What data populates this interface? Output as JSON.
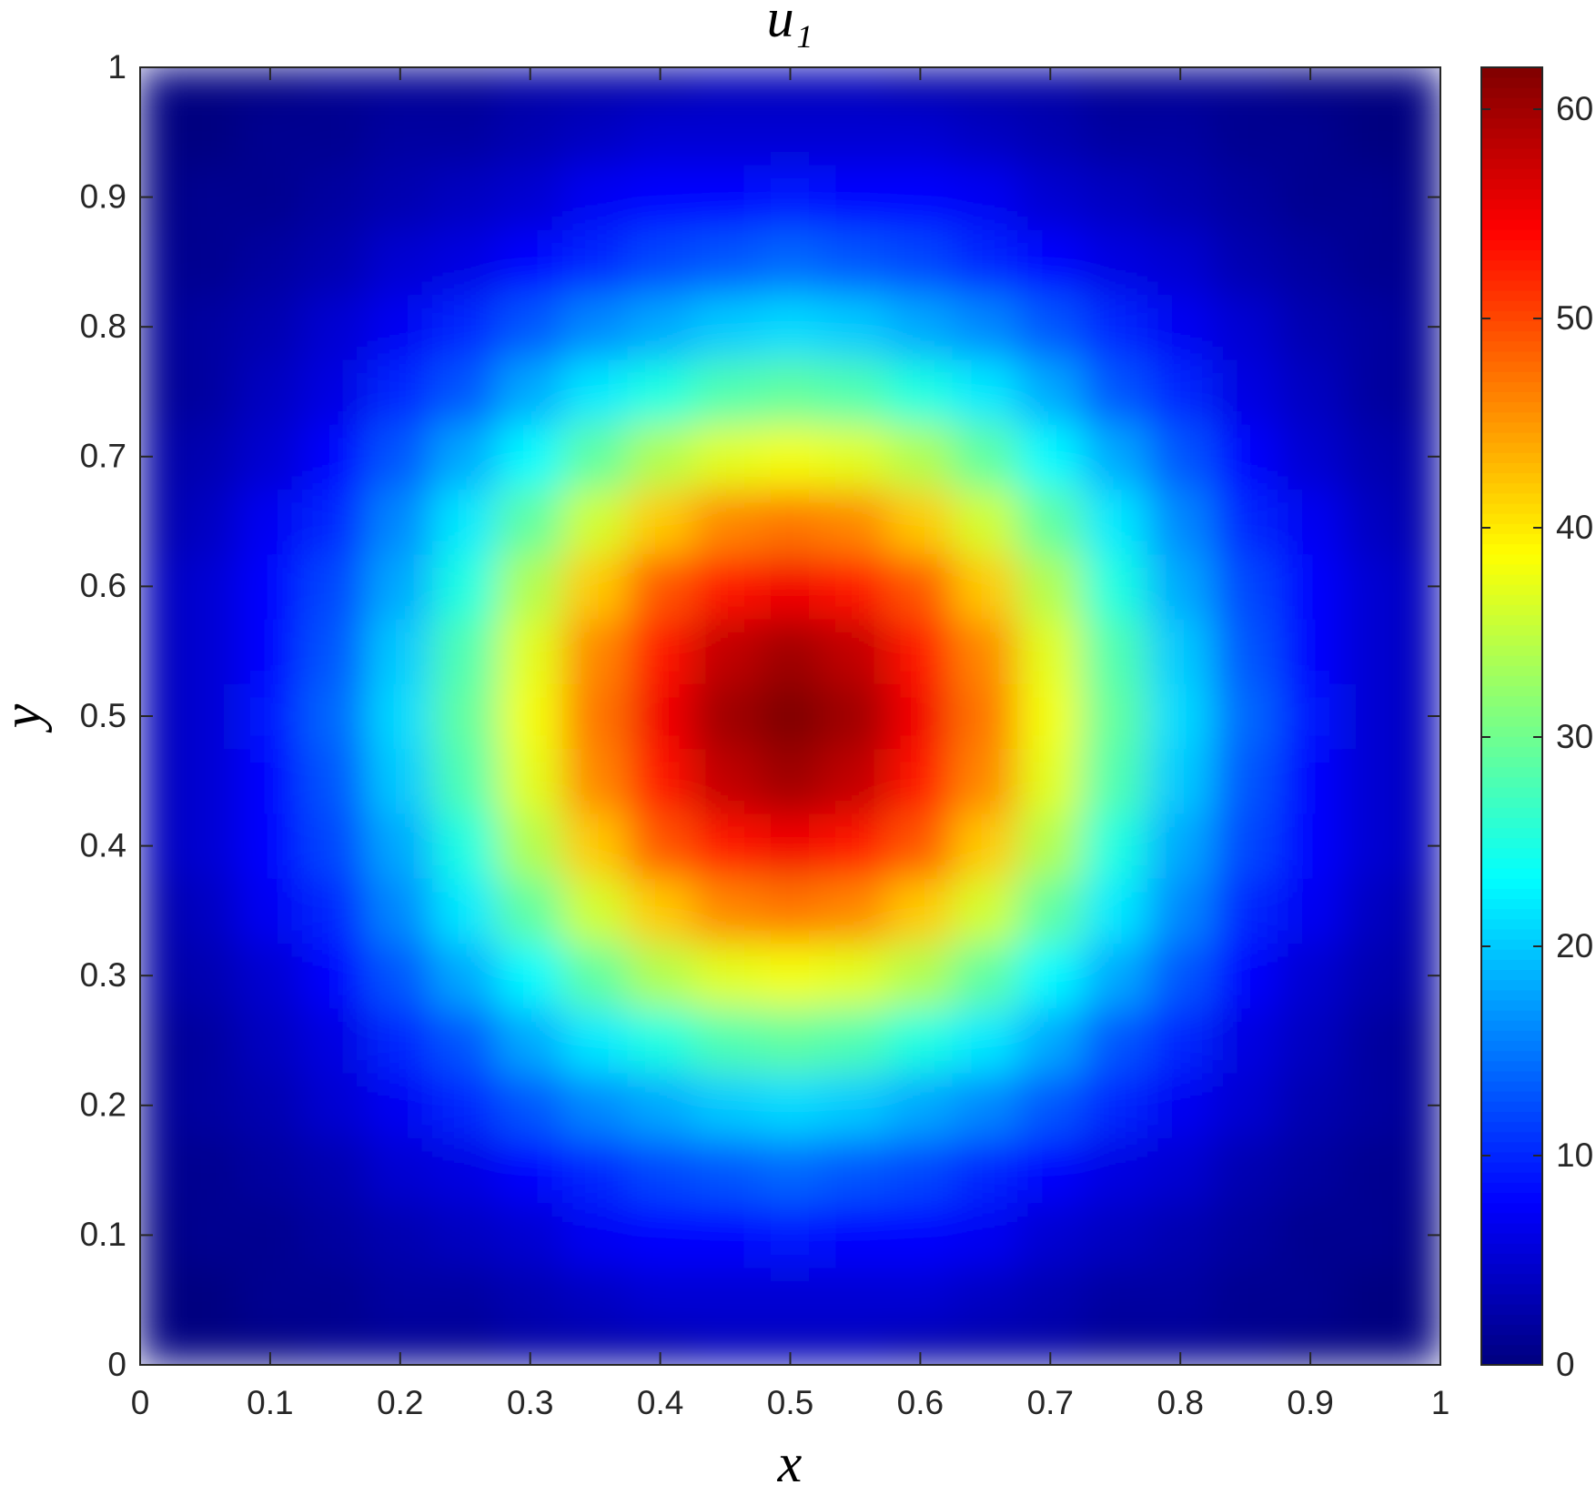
{
  "chart_data": {
    "type": "heatmap",
    "title": "u₁",
    "xlabel": "x",
    "ylabel": "y",
    "x": [
      0,
      0.05,
      0.1,
      0.15,
      0.2,
      0.25,
      0.3,
      0.35,
      0.4,
      0.45,
      0.5,
      0.55,
      0.6,
      0.65,
      0.7,
      0.75,
      0.8,
      0.85,
      0.9,
      0.95,
      1
    ],
    "y": [
      0,
      0.05,
      0.1,
      0.15,
      0.2,
      0.25,
      0.3,
      0.35,
      0.4,
      0.45,
      0.5,
      0.55,
      0.6,
      0.65,
      0.7,
      0.75,
      0.8,
      0.85,
      0.9,
      0.95,
      1
    ],
    "z": [
      [
        0,
        0,
        0,
        1,
        1,
        1,
        2,
        2,
        2,
        3,
        3,
        3,
        2,
        2,
        2,
        1,
        1,
        1,
        0,
        0,
        0
      ],
      [
        0,
        0,
        1,
        1,
        2,
        2,
        3,
        4,
        5,
        5,
        5,
        5,
        5,
        4,
        3,
        2,
        2,
        1,
        1,
        0,
        0
      ],
      [
        0,
        1,
        1,
        2,
        3,
        4,
        5,
        7,
        8,
        8,
        9,
        8,
        8,
        7,
        5,
        4,
        3,
        2,
        1,
        1,
        0
      ],
      [
        1,
        1,
        2,
        3,
        5,
        6,
        8,
        10,
        12,
        13,
        14,
        13,
        12,
        10,
        8,
        6,
        5,
        3,
        2,
        1,
        1
      ],
      [
        1,
        2,
        3,
        5,
        7,
        10,
        13,
        16,
        18,
        20,
        21,
        20,
        18,
        16,
        13,
        10,
        7,
        5,
        3,
        2,
        1
      ],
      [
        1,
        2,
        4,
        6,
        10,
        13,
        18,
        22,
        25,
        28,
        29,
        28,
        25,
        22,
        18,
        13,
        10,
        6,
        4,
        2,
        1
      ],
      [
        2,
        3,
        5,
        8,
        13,
        18,
        23,
        29,
        34,
        37,
        38,
        37,
        34,
        29,
        23,
        18,
        13,
        8,
        5,
        3,
        2
      ],
      [
        2,
        4,
        7,
        10,
        16,
        22,
        29,
        36,
        42,
        46,
        47,
        46,
        42,
        36,
        29,
        22,
        16,
        10,
        7,
        4,
        2
      ],
      [
        3,
        5,
        8,
        12,
        18,
        25,
        34,
        42,
        49,
        53,
        55,
        53,
        49,
        42,
        34,
        25,
        18,
        12,
        8,
        5,
        3
      ],
      [
        3,
        5,
        8,
        13,
        20,
        28,
        37,
        46,
        53,
        58,
        60,
        58,
        53,
        46,
        37,
        28,
        20,
        13,
        8,
        5,
        3
      ],
      [
        3,
        5,
        9,
        14,
        21,
        29,
        38,
        47,
        55,
        60,
        62,
        60,
        55,
        47,
        38,
        29,
        21,
        14,
        9,
        5,
        3
      ],
      [
        3,
        5,
        8,
        13,
        20,
        28,
        37,
        46,
        53,
        58,
        60,
        58,
        53,
        46,
        37,
        28,
        20,
        13,
        8,
        5,
        3
      ],
      [
        3,
        5,
        8,
        12,
        18,
        25,
        34,
        42,
        49,
        53,
        55,
        53,
        49,
        42,
        34,
        25,
        18,
        12,
        8,
        5,
        3
      ],
      [
        2,
        4,
        7,
        10,
        16,
        22,
        29,
        36,
        42,
        46,
        47,
        46,
        42,
        36,
        29,
        22,
        16,
        10,
        7,
        4,
        2
      ],
      [
        2,
        3,
        5,
        8,
        13,
        18,
        23,
        29,
        34,
        37,
        38,
        37,
        34,
        29,
        23,
        18,
        13,
        8,
        5,
        3,
        2
      ],
      [
        1,
        2,
        4,
        6,
        10,
        13,
        18,
        22,
        25,
        28,
        29,
        28,
        25,
        22,
        18,
        13,
        10,
        6,
        4,
        2,
        1
      ],
      [
        1,
        2,
        3,
        5,
        7,
        10,
        13,
        16,
        18,
        20,
        21,
        20,
        18,
        16,
        13,
        10,
        7,
        5,
        3,
        2,
        1
      ],
      [
        1,
        1,
        2,
        3,
        5,
        6,
        8,
        10,
        12,
        13,
        14,
        13,
        12,
        10,
        8,
        6,
        5,
        3,
        2,
        1,
        1
      ],
      [
        0,
        1,
        1,
        2,
        3,
        4,
        5,
        7,
        8,
        8,
        9,
        8,
        8,
        7,
        5,
        4,
        3,
        2,
        1,
        1,
        0
      ],
      [
        0,
        0,
        1,
        1,
        2,
        2,
        3,
        4,
        5,
        5,
        5,
        5,
        5,
        4,
        3,
        2,
        2,
        1,
        1,
        0,
        0
      ],
      [
        0,
        0,
        0,
        1,
        1,
        1,
        2,
        2,
        2,
        3,
        3,
        3,
        2,
        2,
        2,
        1,
        1,
        1,
        0,
        0,
        0
      ]
    ],
    "xlim": [
      0,
      1
    ],
    "ylim": [
      0,
      1
    ],
    "xticks": [
      0,
      0.1,
      0.2,
      0.3,
      0.4,
      0.5,
      0.6,
      0.7,
      0.8,
      0.9,
      1
    ],
    "yticks": [
      0,
      0.1,
      0.2,
      0.3,
      0.4,
      0.5,
      0.6,
      0.7,
      0.8,
      0.9,
      1
    ],
    "colormap": "jet",
    "clim": [
      0,
      62
    ],
    "colorbar_ticks": [
      0,
      10,
      20,
      30,
      40,
      50,
      60
    ]
  }
}
